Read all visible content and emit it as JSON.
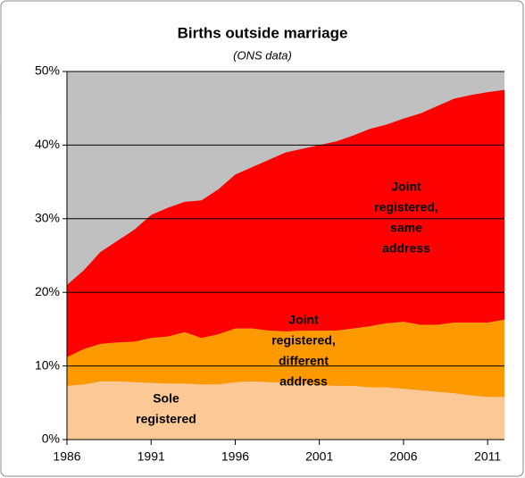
{
  "chart_data": {
    "type": "stacked_area",
    "title": "Births outside marriage",
    "subtitle": "(ONS data)",
    "x": [
      1986,
      1987,
      1988,
      1989,
      1990,
      1991,
      1992,
      1993,
      1994,
      1995,
      1996,
      1997,
      1998,
      1999,
      2000,
      2001,
      2002,
      2003,
      2004,
      2005,
      2006,
      2007,
      2008,
      2009,
      2010,
      2011,
      2012
    ],
    "series": [
      {
        "name": "Sole registered",
        "color": "#fcc896",
        "values": [
          7.3,
          7.5,
          7.9,
          7.9,
          7.8,
          7.7,
          7.6,
          7.6,
          7.5,
          7.5,
          7.8,
          7.9,
          7.8,
          7.7,
          7.6,
          7.4,
          7.3,
          7.3,
          7.1,
          7.1,
          6.9,
          6.7,
          6.5,
          6.3,
          6.0,
          5.8,
          5.8
        ]
      },
      {
        "name": "Joint registered, different address",
        "color": "#ff9900",
        "values": [
          3.9,
          4.8,
          5.1,
          5.3,
          5.5,
          6.1,
          6.4,
          7.0,
          6.3,
          6.8,
          7.3,
          7.2,
          7.0,
          7.0,
          7.2,
          7.4,
          7.5,
          7.8,
          8.3,
          8.7,
          9.1,
          8.9,
          9.1,
          9.6,
          9.9,
          10.1,
          10.5
        ]
      },
      {
        "name": "Joint registered, same address",
        "color": "#ff0000",
        "values": [
          9.8,
          10.7,
          12.5,
          13.8,
          15.2,
          16.7,
          17.5,
          17.7,
          18.7,
          19.7,
          20.9,
          21.9,
          23.2,
          24.3,
          24.7,
          25.2,
          25.7,
          26.2,
          26.8,
          27.0,
          27.6,
          28.7,
          29.7,
          30.4,
          30.9,
          31.3,
          31.2
        ]
      }
    ],
    "annotations": [
      [
        "Sole",
        "registered"
      ],
      [
        "Joint",
        "registered,",
        "different",
        "address"
      ],
      [
        "Joint",
        "registered,",
        "same",
        "address"
      ]
    ],
    "xlim": [
      1986,
      2012
    ],
    "xticks": [
      1986,
      1991,
      1996,
      2001,
      2006,
      2011
    ],
    "ylim": [
      0,
      50
    ],
    "yticks": [
      {
        "value": 0,
        "label": "0%"
      },
      {
        "value": 10,
        "label": "10%"
      },
      {
        "value": 20,
        "label": "20%"
      },
      {
        "value": 30,
        "label": "30%"
      },
      {
        "value": 40,
        "label": "40%"
      },
      {
        "value": 50,
        "label": "50%"
      }
    ],
    "plot_background": "#c0c0c0",
    "grid": true
  }
}
